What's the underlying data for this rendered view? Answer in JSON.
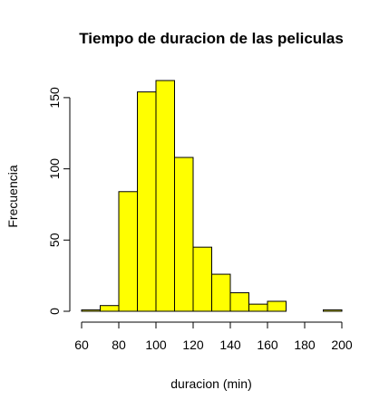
{
  "chart_data": {
    "type": "bar",
    "title": "Tiempo de duracion de las peliculas",
    "xlabel": "duracion (min)",
    "ylabel": "Frecuencia",
    "bin_edges": [
      60,
      70,
      80,
      90,
      100,
      110,
      120,
      130,
      140,
      150,
      160,
      170,
      180,
      190,
      200
    ],
    "values": [
      1,
      4,
      84,
      154,
      162,
      108,
      45,
      26,
      13,
      5,
      7,
      0,
      0,
      1
    ],
    "xlim": [
      60,
      200
    ],
    "ylim": [
      0,
      162
    ],
    "x_ticks": [
      60,
      80,
      100,
      120,
      140,
      160,
      180,
      200
    ],
    "x_tick_labels": [
      "60",
      "80",
      "100",
      "120",
      "140",
      "160",
      "180",
      "200"
    ],
    "y_ticks": [
      0,
      50,
      100,
      150
    ],
    "y_tick_labels": [
      "0",
      "50",
      "100",
      "150"
    ],
    "bar_color": "#ffff00",
    "bar_edge_color": "#000000",
    "grid": false,
    "legend": "none"
  }
}
